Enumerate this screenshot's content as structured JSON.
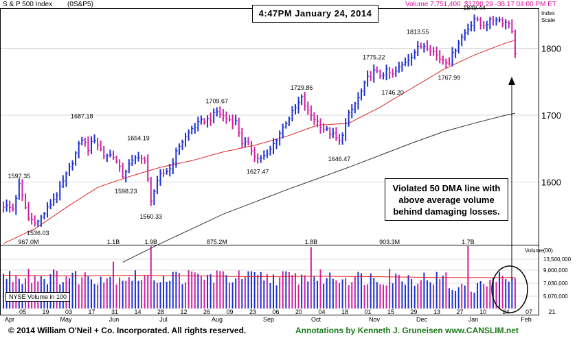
{
  "header": {
    "index_name": "S & P 500 Index",
    "symbol": "(0S&P5)",
    "volume_text": "Volume 7,751,400",
    "quote_text": "$1790.29 -38.17  04:00 PM ET"
  },
  "timestamp": "4:47PM January 24, 2014",
  "callout_lines": [
    "Violated 50 DMA line with",
    "above average volume",
    "behind damaging losses."
  ],
  "footer": {
    "copyright": "© 2014 William O'Neil + Co. Incorporated. All rights reserved.",
    "annotations": "Annotations by Kenneth J. Gruneisen www.CANSLIM.net"
  },
  "colors": {
    "up": "#1c2fd6",
    "down": "#d01fa3",
    "ma50": "#e02020",
    "ma200": "#303030",
    "title": "#e0109a",
    "footer_green": "#1a7a1a"
  },
  "chart_data": {
    "type": "bar",
    "title": "S & P 500 Index",
    "price_axis_label": "Index Scale",
    "ylim": [
      1500,
      1860
    ],
    "yticks": [
      1600,
      1700,
      1800
    ],
    "price_labels": [
      {
        "text": "1597.35",
        "day": 5,
        "value": 1597.35,
        "pos": "above"
      },
      {
        "text": "1536.03",
        "day": 11,
        "value": 1536.03,
        "pos": "below"
      },
      {
        "text": "1687.18",
        "day": 25,
        "value": 1687.18,
        "pos": "above"
      },
      {
        "text": "1598.23",
        "day": 39,
        "value": 1598.23,
        "pos": "below"
      },
      {
        "text": "1654.19",
        "day": 43,
        "value": 1654.19,
        "pos": "above"
      },
      {
        "text": "1560.33",
        "day": 47,
        "value": 1560.33,
        "pos": "below"
      },
      {
        "text": "1709.67",
        "day": 68,
        "value": 1709.67,
        "pos": "above"
      },
      {
        "text": "1627.47",
        "day": 81,
        "value": 1627.47,
        "pos": "below"
      },
      {
        "text": "1729.86",
        "day": 95,
        "value": 1729.86,
        "pos": "above"
      },
      {
        "text": "1646.47",
        "day": 107,
        "value": 1646.47,
        "pos": "below"
      },
      {
        "text": "1775.22",
        "day": 118,
        "value": 1775.22,
        "pos": "above"
      },
      {
        "text": "1746.20",
        "day": 124,
        "value": 1746.2,
        "pos": "below"
      },
      {
        "text": "1813.55",
        "day": 132,
        "value": 1813.55,
        "pos": "above"
      },
      {
        "text": "1767.99",
        "day": 142,
        "value": 1767.99,
        "pos": "below"
      },
      {
        "text": "1849.44",
        "day": 150,
        "value": 1849.44,
        "pos": "above"
      }
    ],
    "x_month_labels": [
      "Apr",
      "May",
      "Jun",
      "Jul",
      "Aug",
      "Sep",
      "Oct",
      "Nov",
      "Dec",
      "Jan",
      "Feb"
    ],
    "x_day_labels": [
      "05",
      "19",
      "03",
      "17",
      "31",
      "14",
      "28",
      "12",
      "26",
      "09",
      "23",
      "06",
      "20",
      "04",
      "18",
      "01",
      "15",
      "29",
      "13",
      "27",
      "10",
      "24",
      "07",
      "21"
    ],
    "volume_axis_label": "Volume(00)",
    "volume_ticks": [
      "13,500,000",
      "9,000,000",
      "7,030,000",
      "5,070,000"
    ],
    "volume_labels": [
      {
        "text": "967.0M",
        "day": 8
      },
      {
        "text": "1.1B",
        "day": 35
      },
      {
        "text": "1.9B",
        "day": 47
      },
      {
        "text": "875.2M",
        "day": 68
      },
      {
        "text": "1.8B",
        "day": 98
      },
      {
        "text": "903.3M",
        "day": 123
      },
      {
        "text": "1.7B",
        "day": 148
      }
    ],
    "volume_legend": "NYSE Volume in 100",
    "anchors": [
      [
        0,
        1565
      ],
      [
        3,
        1560
      ],
      [
        5,
        1595
      ],
      [
        8,
        1545
      ],
      [
        11,
        1540
      ],
      [
        14,
        1560
      ],
      [
        18,
        1590
      ],
      [
        21,
        1620
      ],
      [
        25,
        1665
      ],
      [
        27,
        1650
      ],
      [
        29,
        1665
      ],
      [
        32,
        1640
      ],
      [
        35,
        1640
      ],
      [
        38,
        1610
      ],
      [
        40,
        1625
      ],
      [
        43,
        1640
      ],
      [
        45,
        1630
      ],
      [
        47,
        1575
      ],
      [
        50,
        1610
      ],
      [
        53,
        1620
      ],
      [
        56,
        1655
      ],
      [
        60,
        1680
      ],
      [
        63,
        1690
      ],
      [
        66,
        1695
      ],
      [
        68,
        1705
      ],
      [
        71,
        1695
      ],
      [
        74,
        1690
      ],
      [
        76,
        1660
      ],
      [
        78,
        1655
      ],
      [
        81,
        1635
      ],
      [
        84,
        1640
      ],
      [
        87,
        1665
      ],
      [
        90,
        1690
      ],
      [
        93,
        1710
      ],
      [
        95,
        1725
      ],
      [
        97,
        1705
      ],
      [
        100,
        1690
      ],
      [
        102,
        1680
      ],
      [
        105,
        1670
      ],
      [
        107,
        1660
      ],
      [
        110,
        1700
      ],
      [
        113,
        1725
      ],
      [
        116,
        1755
      ],
      [
        118,
        1765
      ],
      [
        120,
        1760
      ],
      [
        122,
        1765
      ],
      [
        124,
        1760
      ],
      [
        126,
        1770
      ],
      [
        129,
        1785
      ],
      [
        132,
        1800
      ],
      [
        134,
        1805
      ],
      [
        136,
        1800
      ],
      [
        139,
        1785
      ],
      [
        142,
        1780
      ],
      [
        145,
        1810
      ],
      [
        148,
        1830
      ],
      [
        150,
        1845
      ],
      [
        152,
        1835
      ],
      [
        155,
        1840
      ],
      [
        157,
        1845
      ],
      [
        159,
        1840
      ],
      [
        161,
        1838
      ],
      [
        162,
        1828
      ],
      [
        163,
        1790
      ]
    ],
    "ma50": [
      [
        0,
        1508
      ],
      [
        10,
        1530
      ],
      [
        20,
        1562
      ],
      [
        30,
        1592
      ],
      [
        40,
        1608
      ],
      [
        50,
        1622
      ],
      [
        60,
        1632
      ],
      [
        70,
        1645
      ],
      [
        80,
        1655
      ],
      [
        90,
        1668
      ],
      [
        100,
        1685
      ],
      [
        110,
        1688
      ],
      [
        120,
        1712
      ],
      [
        130,
        1740
      ],
      [
        140,
        1768
      ],
      [
        150,
        1790
      ],
      [
        160,
        1808
      ],
      [
        163,
        1812
      ]
    ],
    "ma200": [
      [
        38,
        1480
      ],
      [
        50,
        1508
      ],
      [
        60,
        1530
      ],
      [
        70,
        1552
      ],
      [
        80,
        1570
      ],
      [
        90,
        1588
      ],
      [
        100,
        1605
      ],
      [
        110,
        1622
      ],
      [
        120,
        1640
      ],
      [
        130,
        1658
      ],
      [
        140,
        1675
      ],
      [
        150,
        1688
      ],
      [
        160,
        1700
      ],
      [
        163,
        1703
      ]
    ],
    "vol_profile": [
      [
        0,
        7.5
      ],
      [
        20,
        7.4
      ],
      [
        40,
        7.5
      ],
      [
        60,
        7.4
      ],
      [
        80,
        7.2
      ],
      [
        100,
        7.3
      ],
      [
        120,
        7.2
      ],
      [
        140,
        7.0
      ],
      [
        163,
        7.0
      ]
    ],
    "vol_spikes": [
      [
        8,
        9.0
      ],
      [
        35,
        10.6
      ],
      [
        47,
        14.6
      ],
      [
        68,
        8.6
      ],
      [
        98,
        13.9
      ],
      [
        123,
        9.0
      ],
      [
        148,
        14.5
      ]
    ],
    "vol_low": [
      [
        142,
        4.6
      ],
      [
        143,
        4.2
      ],
      [
        144,
        4.0
      ],
      [
        145,
        4.8
      ],
      [
        146,
        5.6
      ],
      [
        147,
        5.2
      ],
      [
        149,
        3.8
      ],
      [
        150,
        3.6
      ],
      [
        151,
        5.8
      ],
      [
        152,
        6.2
      ],
      [
        153,
        5.5
      ],
      [
        154,
        5.0
      ],
      [
        155,
        6.5
      ],
      [
        156,
        7.0
      ],
      [
        157,
        6.0
      ]
    ]
  }
}
